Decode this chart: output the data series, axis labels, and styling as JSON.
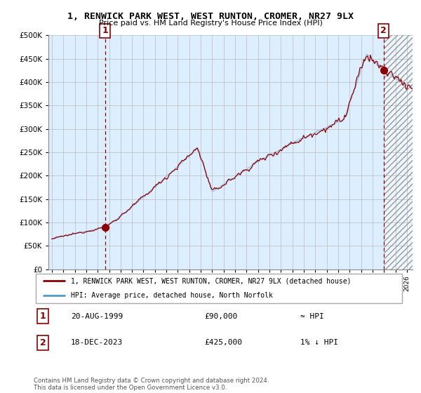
{
  "title": "1, RENWICK PARK WEST, WEST RUNTON, CROMER, NR27 9LX",
  "subtitle": "Price paid vs. HM Land Registry's House Price Index (HPI)",
  "legend_label1": "1, RENWICK PARK WEST, WEST RUNTON, CROMER, NR27 9LX (detached house)",
  "legend_label2": "HPI: Average price, detached house, North Norfolk",
  "sale1_date": "20-AUG-1999",
  "sale1_price": 90000,
  "sale1_hpi": "≈ HPI",
  "sale2_date": "18-DEC-2023",
  "sale2_price": 425000,
  "sale2_hpi": "1% ↓ HPI",
  "footnote": "Contains HM Land Registry data © Crown copyright and database right 2024.\nThis data is licensed under the Open Government Licence v3.0.",
  "ylim": [
    0,
    500000
  ],
  "yticks": [
    0,
    50000,
    100000,
    150000,
    200000,
    250000,
    300000,
    350000,
    400000,
    450000,
    500000
  ],
  "sale1_x": 1999.64,
  "sale1_y": 90000,
  "sale2_x": 2023.96,
  "sale2_y": 425000,
  "hpi_color": "#a8c8e8",
  "price_color": "#8b0000",
  "bg_color": "#ddeeff",
  "marker1_label": "1",
  "marker2_label": "2",
  "hatch_start": 2024.0,
  "xlim_start": 1995.0,
  "xlim_end": 2026.5
}
